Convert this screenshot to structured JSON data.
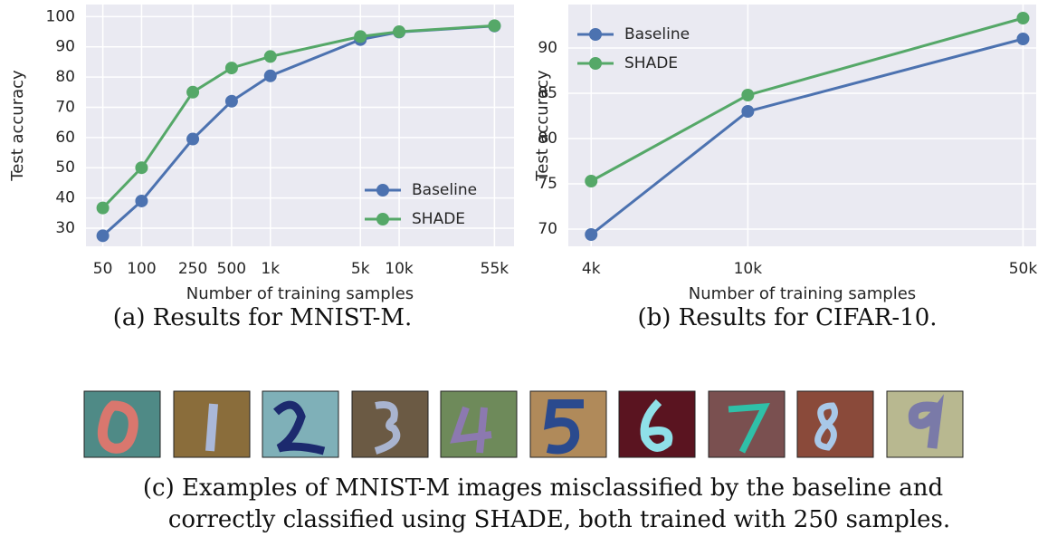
{
  "chart_data": [
    {
      "type": "line",
      "x_label": "Number of training samples",
      "y_label": "Test accuracy",
      "caption": "(a) Results for MNIST-M.",
      "log_x": true,
      "grid": true,
      "legend": "lower right",
      "x": [
        50,
        100,
        250,
        500,
        1000,
        5000,
        10000,
        55000
      ],
      "series": [
        {
          "name": "Baseline",
          "color": "#4c72b0",
          "values": [
            27.5,
            39,
            59.5,
            72,
            80.4,
            92.4,
            94.9,
            96.9
          ]
        },
        {
          "name": "SHADE",
          "color": "#55a868",
          "values": [
            36.7,
            50,
            75,
            83,
            86.8,
            93.4,
            95,
            97
          ]
        }
      ],
      "xlim": [
        37,
        78000
      ],
      "xticks": [
        50,
        100,
        250,
        500,
        {
          "value": 1000,
          "label": "1k"
        },
        {
          "value": 5000,
          "label": "5k"
        },
        {
          "value": 10000,
          "label": "10k"
        },
        {
          "value": 55000,
          "label": "55k"
        }
      ],
      "ylim": [
        24,
        104
      ],
      "yticks": [
        30,
        40,
        50,
        60,
        70,
        80,
        90,
        100
      ]
    },
    {
      "type": "line",
      "x_label": "Number of training samples",
      "y_label": "Test accuracy",
      "caption": "(b) Results for CIFAR-10.",
      "log_x": true,
      "grid": true,
      "legend": "upper left",
      "x": [
        4000,
        10000,
        50000
      ],
      "series": [
        {
          "name": "Baseline",
          "color": "#4c72b0",
          "values": [
            69.4,
            83,
            91
          ]
        },
        {
          "name": "SHADE",
          "color": "#55a868",
          "values": [
            75.3,
            84.8,
            93.3
          ]
        }
      ],
      "xlim": [
        3500,
        54000
      ],
      "xticks": [
        {
          "value": 4000,
          "label": "4k"
        },
        {
          "value": 10000,
          "label": "10k"
        },
        {
          "value": 50000,
          "label": "50k"
        }
      ],
      "ylim": [
        68.1,
        94.8
      ],
      "yticks": [
        70,
        75,
        80,
        85,
        90
      ]
    }
  ],
  "figure_caption": [
    "(c) Examples of MNIST-M images misclassified by the baseline and",
    "correctly classified using SHADE, both trained with 250 samples."
  ]
}
